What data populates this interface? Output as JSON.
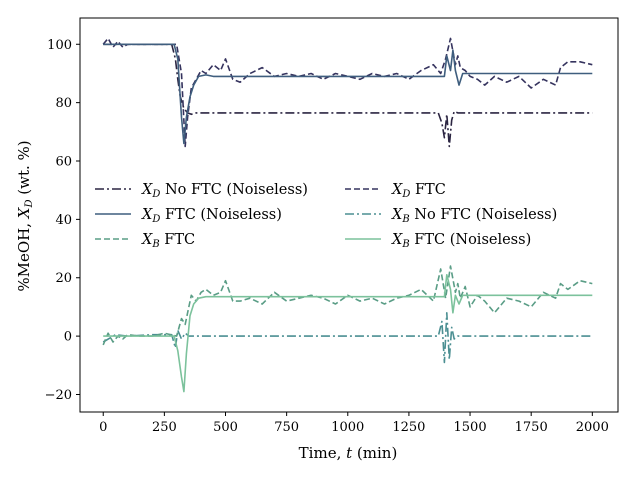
{
  "chart_data": {
    "type": "line",
    "title": "",
    "xlabel": "Time, t (min)",
    "ylabel": "%MeOH, X_D (wt. %)",
    "xlim": [
      -95,
      2105
    ],
    "ylim": [
      -26,
      109
    ],
    "xticks": [
      0,
      250,
      500,
      750,
      1000,
      1250,
      1500,
      1750,
      2000
    ],
    "yticks": [
      -20,
      0,
      20,
      40,
      60,
      80,
      100
    ],
    "grid": false,
    "legend_position": "center-left",
    "series": [
      {
        "name": "X_D No FTC (Noiseless)",
        "style": "dashdot",
        "color": "#2b2542",
        "x": [
          0,
          100,
          200,
          280,
          295,
          305,
          315,
          330,
          345,
          360,
          380,
          420,
          600,
          1000,
          1370,
          1385,
          1395,
          1405,
          1415,
          1425,
          1435,
          1450,
          1480,
          1550,
          2000
        ],
        "y": [
          100,
          100,
          100,
          100,
          95,
          88,
          82,
          78,
          76.5,
          76,
          76.5,
          76.5,
          76.5,
          76.5,
          76.5,
          73,
          68,
          76,
          65,
          74,
          77,
          76.5,
          76.5,
          76.5,
          76.5
        ]
      },
      {
        "name": "X_D FTC",
        "style": "dashed",
        "color": "#35335e",
        "x": [
          0,
          20,
          40,
          60,
          80,
          100,
          150,
          200,
          250,
          300,
          320,
          335,
          345,
          360,
          380,
          400,
          420,
          450,
          480,
          500,
          530,
          560,
          600,
          650,
          700,
          750,
          800,
          850,
          900,
          950,
          1000,
          1050,
          1100,
          1150,
          1200,
          1250,
          1300,
          1350,
          1380,
          1400,
          1420,
          1440,
          1450,
          1460,
          1480,
          1500,
          1530,
          1560,
          1600,
          1650,
          1700,
          1750,
          1800,
          1850,
          1870,
          1900,
          1950,
          2000
        ],
        "y": [
          100,
          102,
          99,
          101,
          99,
          100,
          100,
          100,
          100,
          100,
          90,
          65,
          75,
          85,
          88,
          91,
          90,
          93,
          91,
          95,
          88,
          87,
          90,
          92,
          89,
          90,
          89,
          90,
          88,
          90,
          89,
          88,
          90,
          89,
          90,
          88,
          91,
          93,
          90,
          95,
          102,
          93,
          96,
          92,
          91,
          89,
          88,
          86,
          89,
          87,
          89,
          85,
          88,
          86,
          92,
          94,
          94,
          93
        ]
      },
      {
        "name": "X_D FTC (Noiseless)",
        "style": "solid",
        "color": "#3f5e7e",
        "x": [
          0,
          100,
          200,
          290,
          305,
          320,
          330,
          340,
          355,
          370,
          390,
          420,
          450,
          500,
          800,
          1000,
          1380,
          1395,
          1405,
          1420,
          1430,
          1440,
          1455,
          1470,
          1500,
          1600,
          2000
        ],
        "y": [
          100,
          100,
          100,
          100,
          95,
          75,
          66,
          75,
          82,
          86,
          89,
          89.5,
          89,
          89,
          89,
          89,
          89,
          89,
          96,
          91,
          98,
          91,
          86,
          90,
          90,
          90,
          90
        ]
      },
      {
        "name": "X_B No FTC (Noiseless)",
        "style": "dashdot",
        "color": "#4b8f92",
        "x": [
          0,
          50,
          100,
          200,
          280,
          295,
          305,
          320,
          335,
          350,
          370,
          400,
          600,
          1000,
          1370,
          1385,
          1395,
          1405,
          1415,
          1425,
          1435,
          1450,
          1480,
          1550,
          2000
        ],
        "y": [
          -2,
          0.5,
          0,
          0.5,
          0.5,
          -4,
          2,
          -1,
          1,
          0,
          0,
          0,
          0,
          0,
          0,
          5,
          -9,
          8,
          -8,
          3,
          -1,
          0,
          0,
          0,
          0
        ]
      },
      {
        "name": "X_B FTC",
        "style": "dashed",
        "color": "#5a9d86",
        "x": [
          0,
          20,
          40,
          60,
          80,
          100,
          150,
          200,
          250,
          300,
          320,
          335,
          345,
          360,
          380,
          400,
          420,
          450,
          480,
          500,
          530,
          560,
          600,
          650,
          700,
          750,
          800,
          850,
          900,
          950,
          1000,
          1050,
          1100,
          1150,
          1200,
          1250,
          1300,
          1350,
          1380,
          1400,
          1420,
          1440,
          1450,
          1460,
          1480,
          1500,
          1530,
          1560,
          1600,
          1650,
          1700,
          1750,
          1800,
          1850,
          1870,
          1900,
          1950,
          2000
        ],
        "y": [
          -3,
          1,
          -2,
          0,
          -1,
          0.5,
          0,
          0,
          1,
          0,
          6,
          4,
          8,
          14,
          12,
          15,
          16,
          14,
          15,
          19,
          12,
          12,
          13,
          11,
          15,
          12,
          13,
          14,
          13,
          11,
          14,
          12,
          13,
          11,
          13,
          14,
          16,
          12,
          23,
          13,
          24,
          15,
          18,
          13,
          17,
          10,
          14,
          12,
          8,
          13,
          12,
          10,
          15,
          13,
          18,
          16,
          19,
          18
        ]
      },
      {
        "name": "X_B FTC (Noiseless)",
        "style": "solid",
        "color": "#7cc29c",
        "x": [
          0,
          100,
          200,
          290,
          305,
          320,
          330,
          340,
          355,
          370,
          390,
          420,
          450,
          500,
          800,
          1000,
          1380,
          1395,
          1405,
          1420,
          1430,
          1440,
          1455,
          1470,
          1500,
          1600,
          2000
        ],
        "y": [
          0,
          0,
          0,
          0,
          -5,
          -14,
          -19,
          -6,
          7,
          11,
          13,
          13.5,
          13.5,
          13.5,
          13.5,
          13.5,
          13.5,
          13.5,
          21,
          16,
          8,
          14,
          11,
          14,
          14,
          14,
          14
        ]
      }
    ]
  }
}
